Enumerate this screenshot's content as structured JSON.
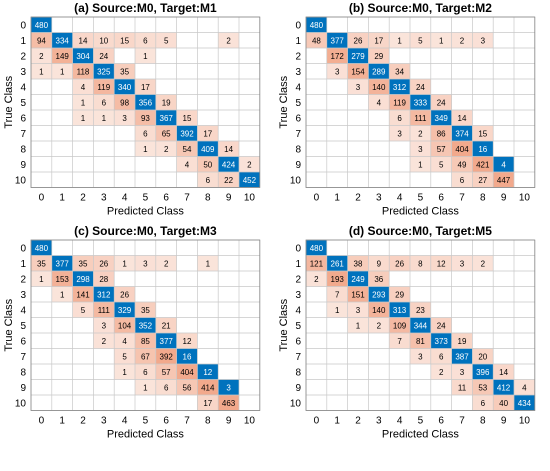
{
  "figure": {
    "colors": {
      "diag": "#0072BD",
      "diag_text": "#ffffff",
      "off_light": "#FBE8E0",
      "off_dark": "#F2A98C",
      "grid": "#c8c8c8",
      "text": "#000000"
    }
  },
  "chart_data": [
    {
      "type": "heatmap",
      "title": "(a) Source:M0, Target:M1",
      "xlabel": "Predicted Class",
      "ylabel": "True Class",
      "x_ticks": [
        "0",
        "1",
        "2",
        "3",
        "4",
        "5",
        "6",
        "7",
        "8",
        "9",
        "10"
      ],
      "y_ticks": [
        "0",
        "1",
        "2",
        "3",
        "4",
        "5",
        "6",
        "7",
        "8",
        "9",
        "10"
      ],
      "matrix": [
        [
          480,
          null,
          null,
          null,
          null,
          null,
          null,
          null,
          null,
          null,
          null
        ],
        [
          94,
          334,
          14,
          10,
          15,
          6,
          5,
          null,
          null,
          2,
          null
        ],
        [
          2,
          149,
          304,
          24,
          null,
          1,
          null,
          null,
          null,
          null,
          null
        ],
        [
          1,
          1,
          118,
          325,
          35,
          null,
          null,
          null,
          null,
          null,
          null
        ],
        [
          null,
          null,
          4,
          119,
          340,
          17,
          null,
          null,
          null,
          null,
          null
        ],
        [
          null,
          null,
          1,
          6,
          98,
          356,
          19,
          null,
          null,
          null,
          null
        ],
        [
          null,
          null,
          1,
          1,
          3,
          93,
          367,
          15,
          null,
          null,
          null
        ],
        [
          null,
          null,
          null,
          null,
          null,
          6,
          65,
          392,
          17,
          null,
          null
        ],
        [
          null,
          null,
          null,
          null,
          null,
          1,
          2,
          54,
          409,
          14,
          null
        ],
        [
          null,
          null,
          null,
          null,
          null,
          null,
          null,
          4,
          50,
          424,
          2
        ],
        [
          null,
          null,
          null,
          null,
          null,
          null,
          null,
          null,
          6,
          22,
          452
        ]
      ]
    },
    {
      "type": "heatmap",
      "title": "(b) Source:M0, Target:M2",
      "xlabel": "Predicted Class",
      "ylabel": "True Class",
      "x_ticks": [
        "0",
        "1",
        "2",
        "3",
        "4",
        "5",
        "6",
        "7",
        "8",
        "9",
        "10"
      ],
      "y_ticks": [
        "0",
        "1",
        "2",
        "3",
        "4",
        "5",
        "6",
        "7",
        "8",
        "9",
        "10"
      ],
      "matrix": [
        [
          480,
          null,
          null,
          null,
          null,
          null,
          null,
          null,
          null,
          null,
          null
        ],
        [
          48,
          377,
          26,
          17,
          1,
          5,
          1,
          2,
          3,
          null,
          null
        ],
        [
          null,
          172,
          279,
          29,
          null,
          null,
          null,
          null,
          null,
          null,
          null
        ],
        [
          null,
          3,
          154,
          289,
          34,
          null,
          null,
          null,
          null,
          null,
          null
        ],
        [
          null,
          null,
          3,
          140,
          312,
          24,
          null,
          null,
          null,
          null,
          null
        ],
        [
          null,
          null,
          null,
          4,
          119,
          333,
          24,
          null,
          null,
          null,
          null
        ],
        [
          null,
          null,
          null,
          null,
          6,
          111,
          349,
          14,
          null,
          null,
          null
        ],
        [
          null,
          null,
          null,
          null,
          3,
          2,
          86,
          374,
          15,
          null,
          null
        ],
        [
          null,
          null,
          null,
          null,
          null,
          3,
          57,
          404,
          16,
          null,
          null
        ],
        [
          null,
          null,
          null,
          null,
          null,
          1,
          5,
          49,
          421,
          4,
          null
        ],
        [
          null,
          null,
          null,
          null,
          null,
          null,
          null,
          6,
          27,
          447,
          null
        ]
      ]
    },
    {
      "type": "heatmap",
      "title": "(c) Source:M0, Target:M3",
      "xlabel": "Predicted Class",
      "ylabel": "True Class",
      "x_ticks": [
        "0",
        "1",
        "2",
        "3",
        "4",
        "5",
        "6",
        "7",
        "8",
        "9",
        "10"
      ],
      "y_ticks": [
        "0",
        "1",
        "2",
        "3",
        "4",
        "5",
        "6",
        "7",
        "8",
        "9",
        "10"
      ],
      "matrix": [
        [
          480,
          null,
          null,
          null,
          null,
          null,
          null,
          null,
          null,
          null,
          null
        ],
        [
          35,
          377,
          35,
          26,
          1,
          3,
          2,
          null,
          1,
          null,
          null
        ],
        [
          1,
          153,
          298,
          28,
          null,
          null,
          null,
          null,
          null,
          null,
          null
        ],
        [
          null,
          1,
          141,
          312,
          26,
          null,
          null,
          null,
          null,
          null,
          null
        ],
        [
          null,
          null,
          5,
          111,
          329,
          35,
          null,
          null,
          null,
          null,
          null
        ],
        [
          null,
          null,
          null,
          3,
          104,
          352,
          21,
          null,
          null,
          null,
          null
        ],
        [
          null,
          null,
          null,
          2,
          4,
          85,
          377,
          12,
          null,
          null,
          null
        ],
        [
          null,
          null,
          null,
          null,
          5,
          67,
          392,
          16,
          null,
          null,
          null
        ],
        [
          null,
          null,
          null,
          null,
          1,
          6,
          57,
          404,
          12,
          null,
          null
        ],
        [
          null,
          null,
          null,
          null,
          null,
          1,
          6,
          56,
          414,
          3,
          null
        ],
        [
          null,
          null,
          null,
          null,
          null,
          null,
          null,
          null,
          17,
          463,
          null
        ]
      ]
    },
    {
      "type": "heatmap",
      "title": "(d) Source:M0, Target:M5",
      "xlabel": "Predicted Class",
      "ylabel": "True Class",
      "x_ticks": [
        "0",
        "1",
        "2",
        "3",
        "4",
        "5",
        "6",
        "7",
        "8",
        "9",
        "10"
      ],
      "y_ticks": [
        "0",
        "1",
        "2",
        "3",
        "4",
        "5",
        "6",
        "7",
        "8",
        "9",
        "10"
      ],
      "matrix": [
        [
          480,
          null,
          null,
          null,
          null,
          null,
          null,
          null,
          null,
          null,
          null
        ],
        [
          121,
          261,
          38,
          9,
          26,
          8,
          12,
          3,
          2,
          null,
          null
        ],
        [
          2,
          193,
          249,
          36,
          null,
          null,
          null,
          null,
          null,
          null,
          null
        ],
        [
          null,
          7,
          151,
          293,
          29,
          null,
          null,
          null,
          null,
          null,
          null
        ],
        [
          null,
          1,
          3,
          140,
          313,
          23,
          null,
          null,
          null,
          null,
          null
        ],
        [
          null,
          null,
          1,
          2,
          109,
          344,
          24,
          null,
          null,
          null,
          null
        ],
        [
          null,
          null,
          null,
          null,
          7,
          81,
          373,
          19,
          null,
          null,
          null
        ],
        [
          null,
          null,
          null,
          null,
          null,
          3,
          6,
          387,
          20,
          null,
          null
        ],
        [
          null,
          null,
          null,
          null,
          null,
          null,
          2,
          3,
          396,
          14,
          null
        ],
        [
          null,
          null,
          null,
          null,
          null,
          null,
          null,
          11,
          53,
          412,
          4
        ],
        [
          null,
          null,
          null,
          null,
          null,
          null,
          null,
          null,
          6,
          40,
          434
        ]
      ]
    }
  ]
}
